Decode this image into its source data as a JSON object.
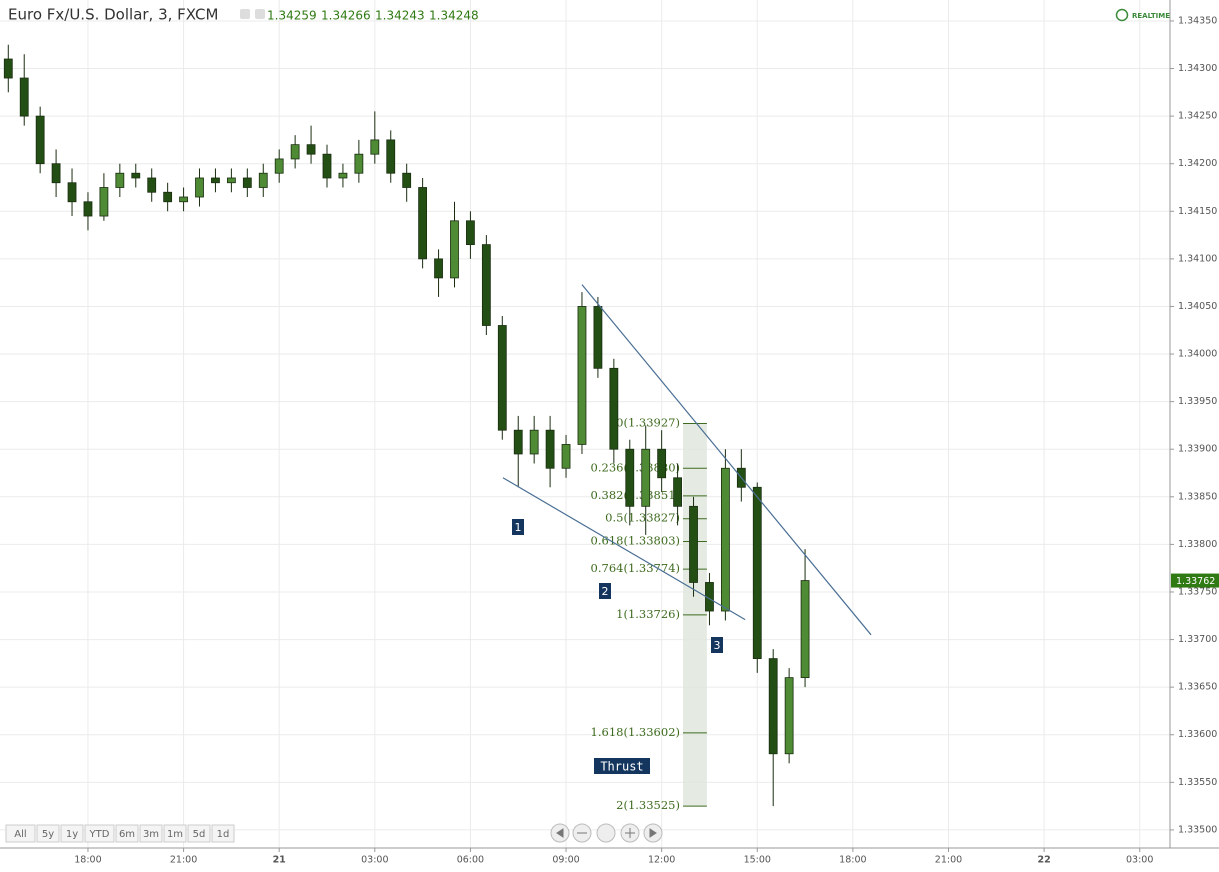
{
  "header": {
    "title": "Euro Fx/U.S. Dollar, 3, FXCM",
    "ohlc": [
      1.34259,
      1.34266,
      1.34243,
      1.34248
    ],
    "status": "REALTIME"
  },
  "range_buttons": [
    "All",
    "5y",
    "1y",
    "YTD",
    "6m",
    "3m",
    "1m",
    "5d",
    "1d"
  ],
  "chart_data": {
    "type": "candlestick",
    "x": [
      -2.5,
      -2,
      -1.5,
      -1,
      -0.5,
      0,
      0.5,
      1,
      1.5,
      2,
      2.5,
      3,
      3.5,
      4,
      4.5,
      5,
      5.5,
      6,
      6.5,
      7,
      7.5,
      8,
      8.5,
      9,
      9.5,
      10,
      10.5,
      11,
      11.5,
      12,
      12.5,
      13,
      13.5,
      14,
      14.5,
      15,
      15.5,
      16,
      16.5,
      17,
      17.5,
      18,
      18.5,
      19,
      19.5,
      20,
      20.5,
      21,
      21.5,
      22,
      22.5
    ],
    "open": [
      1.3431,
      1.3429,
      1.3425,
      1.342,
      1.3418,
      1.3416,
      1.34145,
      1.34175,
      1.3419,
      1.34185,
      1.3417,
      1.3416,
      1.34165,
      1.34185,
      1.3418,
      1.34185,
      1.34175,
      1.3419,
      1.34205,
      1.3422,
      1.3421,
      1.34185,
      1.3419,
      1.3421,
      1.34225,
      1.3419,
      1.34175,
      1.341,
      1.3408,
      1.3414,
      1.34115,
      1.3403,
      1.3392,
      1.33895,
      1.3392,
      1.3388,
      1.33905,
      1.3405,
      1.33985,
      1.339,
      1.3384,
      1.339,
      1.3387,
      1.3384,
      1.3376,
      1.3373,
      1.3388,
      1.3386,
      1.3368,
      1.3358,
      1.3366
    ],
    "high": [
      1.34325,
      1.34315,
      1.3426,
      1.34215,
      1.34195,
      1.3417,
      1.3419,
      1.342,
      1.342,
      1.34195,
      1.3418,
      1.34175,
      1.34195,
      1.34195,
      1.34195,
      1.34195,
      1.342,
      1.34215,
      1.3423,
      1.3424,
      1.3422,
      1.342,
      1.34225,
      1.34255,
      1.34235,
      1.342,
      1.34185,
      1.3411,
      1.3416,
      1.3415,
      1.34125,
      1.3404,
      1.33935,
      1.33935,
      1.33935,
      1.33915,
      1.34065,
      1.3406,
      1.33995,
      1.3391,
      1.33925,
      1.3392,
      1.33885,
      1.3385,
      1.3377,
      1.339,
      1.339,
      1.33865,
      1.3369,
      1.3367,
      1.33795
    ],
    "low": [
      1.34275,
      1.3424,
      1.3419,
      1.34165,
      1.34145,
      1.3413,
      1.3414,
      1.34165,
      1.34175,
      1.3416,
      1.3415,
      1.3415,
      1.34155,
      1.3417,
      1.3417,
      1.34165,
      1.34165,
      1.3418,
      1.34195,
      1.342,
      1.34175,
      1.34175,
      1.3418,
      1.342,
      1.3418,
      1.3416,
      1.3409,
      1.3406,
      1.3407,
      1.341,
      1.3402,
      1.3391,
      1.3386,
      1.33885,
      1.3386,
      1.3387,
      1.33895,
      1.33975,
      1.33885,
      1.3382,
      1.3381,
      1.33855,
      1.3382,
      1.33745,
      1.33715,
      1.3372,
      1.33845,
      1.33665,
      1.33525,
      1.3357,
      1.3365
    ],
    "close": [
      1.3429,
      1.3425,
      1.342,
      1.3418,
      1.3416,
      1.34145,
      1.34175,
      1.3419,
      1.34185,
      1.3417,
      1.3416,
      1.34165,
      1.34185,
      1.3418,
      1.34185,
      1.34175,
      1.3419,
      1.34205,
      1.3422,
      1.3421,
      1.34185,
      1.3419,
      1.3421,
      1.34225,
      1.3419,
      1.34175,
      1.341,
      1.3408,
      1.3414,
      1.34115,
      1.3403,
      1.3392,
      1.33895,
      1.3392,
      1.3388,
      1.33905,
      1.3405,
      1.33985,
      1.339,
      1.3384,
      1.339,
      1.3387,
      1.3384,
      1.3376,
      1.3373,
      1.3388,
      1.3386,
      1.3368,
      1.3358,
      1.3366,
      1.33762
    ],
    "up_color": "#4f8a35",
    "down_color": "#234f14",
    "xlim": [
      -2.76,
      33.95
    ],
    "ylim": [
      1.33481,
      1.34372
    ],
    "xticks": [
      {
        "value": 0,
        "label": "18:00"
      },
      {
        "value": 3,
        "label": "21:00"
      },
      {
        "value": 6,
        "label": "21"
      },
      {
        "value": 9,
        "label": "03:00"
      },
      {
        "value": 12,
        "label": "06:00"
      },
      {
        "value": 15,
        "label": "09:00"
      },
      {
        "value": 18,
        "label": "12:00"
      },
      {
        "value": 21,
        "label": "15:00"
      },
      {
        "value": 24,
        "label": "18:00"
      },
      {
        "value": 27,
        "label": "21:00"
      },
      {
        "value": 30,
        "label": "22"
      },
      {
        "value": 33,
        "label": "03:00"
      }
    ],
    "yticks": [
      {
        "value": 1.3435,
        "label": "1.34350"
      },
      {
        "value": 1.343,
        "label": "1.34300"
      },
      {
        "value": 1.3425,
        "label": "1.34250"
      },
      {
        "value": 1.342,
        "label": "1.34200"
      },
      {
        "value": 1.3415,
        "label": "1.34150"
      },
      {
        "value": 1.341,
        "label": "1.34100"
      },
      {
        "value": 1.3405,
        "label": "1.34050"
      },
      {
        "value": 1.34,
        "label": "1.34000"
      },
      {
        "value": 1.3395,
        "label": "1.33950"
      },
      {
        "value": 1.339,
        "label": "1.33900"
      },
      {
        "value": 1.3385,
        "label": "1.33850"
      },
      {
        "value": 1.338,
        "label": "1.33800"
      },
      {
        "value": 1.3375,
        "label": "1.33750"
      },
      {
        "value": 1.337,
        "label": "1.33700"
      },
      {
        "value": 1.3365,
        "label": "1.33650"
      },
      {
        "value": 1.336,
        "label": "1.33600"
      },
      {
        "value": 1.3355,
        "label": "1.33550"
      },
      {
        "value": 1.335,
        "label": "1.33500"
      }
    ],
    "grid": true,
    "trendlines": [
      {
        "x": [
          15.5,
          24.57
        ],
        "y": [
          1.34073,
          1.33705
        ],
        "color": "#4a6f94"
      },
      {
        "x": [
          13.02,
          20.62
        ],
        "y": [
          1.3387,
          1.33721
        ],
        "color": "#4a6f94"
      }
    ],
    "fib": {
      "x": [
        18.67,
        19.42
      ],
      "color": "#3e6b1f",
      "levels": [
        {
          "price": 1.33927,
          "label": "0(1.33927)"
        },
        {
          "price": 1.3388,
          "label": "0.236(1.33880)"
        },
        {
          "price": 1.33851,
          "label": "0.382(1.33851)"
        },
        {
          "price": 1.33827,
          "label": "0.5(1.33827)"
        },
        {
          "price": 1.33803,
          "label": "0.618(1.33803)"
        },
        {
          "price": 1.33774,
          "label": "0.764(1.33774)"
        },
        {
          "price": 1.33726,
          "label": "1(1.33726)"
        },
        {
          "price": 1.33602,
          "label": "1.618(1.33602)"
        },
        {
          "price": 1.33525,
          "label": "2(1.33525)"
        }
      ]
    },
    "annotations": [
      "1",
      "2",
      "3",
      "Thrust"
    ]
  }
}
